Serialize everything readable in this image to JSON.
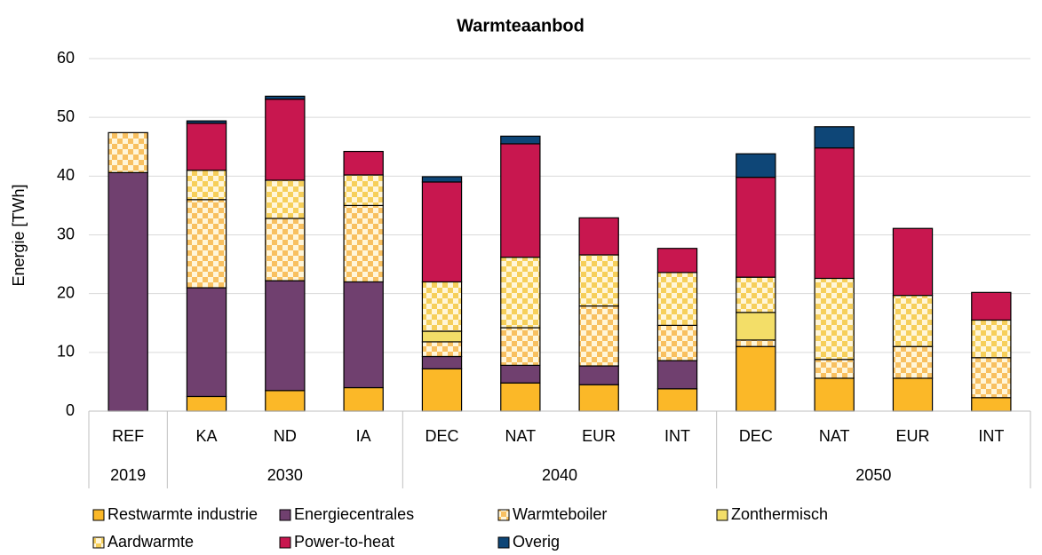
{
  "chart_data": {
    "type": "stacked_bar",
    "title": "Warmteaanbod",
    "y_label": "Energie [TWh]",
    "categories": [
      "REF",
      "KA",
      "ND",
      "IA",
      "DEC",
      "NAT",
      "EUR",
      "INT",
      "DEC",
      "NAT",
      "EUR",
      "INT"
    ],
    "groups": [
      {
        "label": "2019",
        "count": 1
      },
      {
        "label": "2030",
        "count": 3
      },
      {
        "label": "2040",
        "count": 4
      },
      {
        "label": "2050",
        "count": 4
      }
    ],
    "ylim": [
      0,
      60
    ],
    "yticks": [
      0,
      10,
      20,
      30,
      40,
      50,
      60
    ],
    "grid": true,
    "legend": "bottom",
    "series": [
      {
        "name": "Restwarmte industrie",
        "color": "#FBB828",
        "values": [
          0,
          2.5,
          3.5,
          4,
          7.2,
          4.8,
          4.5,
          3.8,
          11,
          5.6,
          5.6,
          2.3
        ]
      },
      {
        "name": "Energiecentrales",
        "color": "#70406F",
        "values": [
          40.6,
          18.5,
          18.7,
          18,
          2.1,
          3,
          3.2,
          4.8,
          0,
          0,
          0,
          0
        ]
      },
      {
        "name": "Warmteboiler",
        "color": "#F8C060",
        "pattern": "checker",
        "values": [
          6.8,
          15,
          10.6,
          13,
          2.5,
          6.4,
          10.2,
          6,
          1.1,
          3.2,
          5.4,
          6.8
        ]
      },
      {
        "name": "Zonthermisch",
        "color": "#F3DE68",
        "values": [
          0,
          0,
          0,
          0,
          1.8,
          0,
          0,
          0,
          4.7,
          0,
          0,
          0
        ]
      },
      {
        "name": "Aardwarmte",
        "color": "#F6CF5A",
        "pattern": "checker",
        "values": [
          0,
          5,
          6.5,
          5.2,
          8.4,
          12,
          8.7,
          9,
          6,
          13.8,
          8.7,
          6.4
        ]
      },
      {
        "name": "Power-to-heat",
        "color": "#C8174F",
        "values": [
          0,
          8,
          13.8,
          4,
          17,
          19.3,
          6.3,
          4.1,
          17,
          22.2,
          11.4,
          4.7
        ]
      },
      {
        "name": "Overig",
        "color": "#0E4677",
        "values": [
          0,
          0.4,
          0.5,
          0,
          0.9,
          1.3,
          0,
          0,
          4,
          3.6,
          0,
          0
        ]
      }
    ]
  }
}
